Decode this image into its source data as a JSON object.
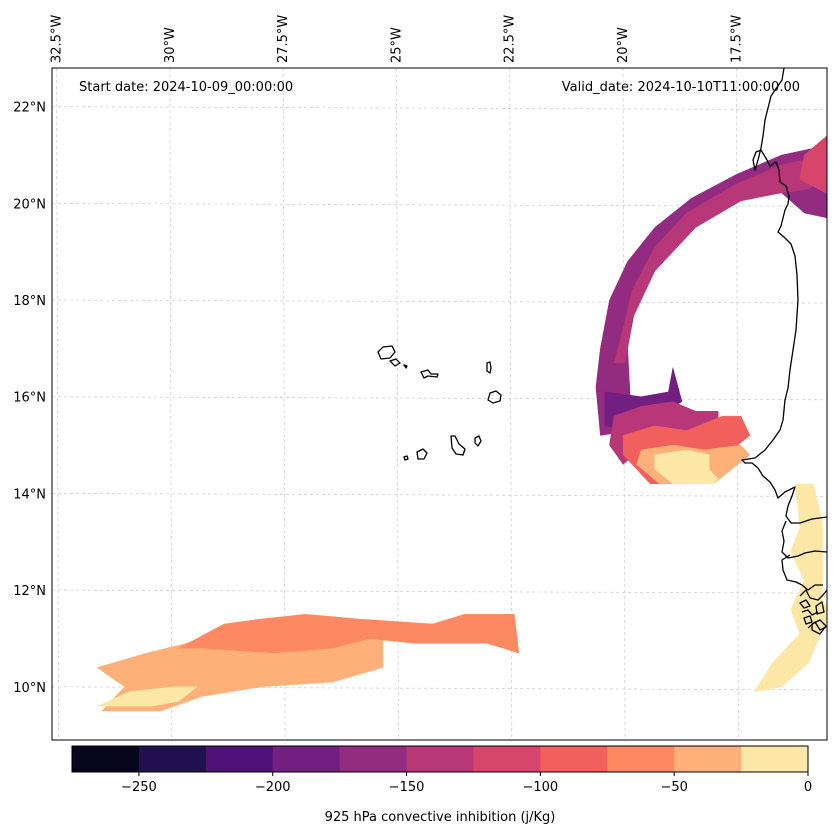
{
  "map": {
    "projection": "lat-lon",
    "extent": {
      "lon_min": -32.6,
      "lon_max": -15.5,
      "lat_min": 8.9,
      "lat_max": 22.8
    },
    "start_date_label": "Start date: 2024-10-09_00:00:00",
    "valid_date_label": "Valid_date: 2024-10-10T11:00:00.00",
    "lon_ticks": [
      {
        "value": -32.5,
        "label": "32.5°W"
      },
      {
        "value": -30,
        "label": "30°W"
      },
      {
        "value": -27.5,
        "label": "27.5°W"
      },
      {
        "value": -25,
        "label": "25°W"
      },
      {
        "value": -22.5,
        "label": "22.5°W"
      },
      {
        "value": -20,
        "label": "20°W"
      },
      {
        "value": -17.5,
        "label": "17.5°W"
      }
    ],
    "lat_ticks": [
      {
        "value": 22,
        "label": "22°N"
      },
      {
        "value": 20,
        "label": "20°N"
      },
      {
        "value": 18,
        "label": "18°N"
      },
      {
        "value": 16,
        "label": "16°N"
      },
      {
        "value": 14,
        "label": "14°N"
      },
      {
        "value": 12,
        "label": "12°N"
      },
      {
        "value": 10,
        "label": "10°N"
      }
    ],
    "field": "925 hPa convective inhibition",
    "regions": [
      {
        "name": "northern-arc-outer",
        "level": -175,
        "lonlat": [
          [
            -15.5,
            21.2
          ],
          [
            -16.5,
            21.0
          ],
          [
            -17.5,
            20.6
          ],
          [
            -18.5,
            20.1
          ],
          [
            -19.3,
            19.5
          ],
          [
            -19.9,
            18.8
          ],
          [
            -20.3,
            18.0
          ],
          [
            -20.5,
            17.0
          ],
          [
            -20.6,
            16.2
          ],
          [
            -20.5,
            15.2
          ],
          [
            -19.8,
            15.3
          ],
          [
            -19.9,
            17.0
          ],
          [
            -19.7,
            18.0
          ],
          [
            -19.1,
            19.0
          ],
          [
            -18.3,
            19.8
          ],
          [
            -17.3,
            20.2
          ],
          [
            -16.6,
            20.3
          ],
          [
            -16.0,
            19.8
          ],
          [
            -15.5,
            19.7
          ]
        ]
      },
      {
        "name": "northern-arc-inner",
        "level": -150,
        "lonlat": [
          [
            -15.5,
            21.0
          ],
          [
            -16.5,
            20.8
          ],
          [
            -17.5,
            20.4
          ],
          [
            -18.6,
            19.8
          ],
          [
            -19.3,
            19.1
          ],
          [
            -19.8,
            18.2
          ],
          [
            -20.0,
            17.4
          ],
          [
            -20.2,
            16.7
          ],
          [
            -19.95,
            16.7
          ],
          [
            -19.8,
            17.6
          ],
          [
            -19.3,
            18.6
          ],
          [
            -18.4,
            19.5
          ],
          [
            -17.4,
            20.05
          ],
          [
            -16.6,
            20.2
          ],
          [
            -15.9,
            20.3
          ],
          [
            -15.5,
            20.6
          ]
        ]
      },
      {
        "name": "northern-arc-east-core",
        "level": -125,
        "lonlat": [
          [
            -15.5,
            21.4
          ],
          [
            -16.0,
            21.0
          ],
          [
            -16.1,
            20.5
          ],
          [
            -15.5,
            20.2
          ]
        ]
      },
      {
        "name": "southwest-core",
        "level": -200,
        "lonlat": [
          [
            -20.4,
            16.1
          ],
          [
            -19.6,
            16.0
          ],
          [
            -19.0,
            16.1
          ],
          [
            -18.9,
            16.6
          ],
          [
            -18.7,
            15.9
          ],
          [
            -19.8,
            15.3
          ],
          [
            -20.4,
            15.4
          ]
        ]
      },
      {
        "name": "southwest-mid",
        "level": -150,
        "lonlat": [
          [
            -20.2,
            15.6
          ],
          [
            -19.6,
            15.8
          ],
          [
            -18.9,
            15.9
          ],
          [
            -18.4,
            15.7
          ],
          [
            -17.9,
            15.7
          ],
          [
            -17.9,
            15.3
          ],
          [
            -18.6,
            15.3
          ],
          [
            -19.5,
            15.0
          ],
          [
            -20.0,
            14.6
          ],
          [
            -20.3,
            15.0
          ]
        ]
      },
      {
        "name": "southwest-warm",
        "level": -100,
        "lonlat": [
          [
            -20.0,
            15.2
          ],
          [
            -19.3,
            15.4
          ],
          [
            -18.6,
            15.3
          ],
          [
            -17.8,
            15.6
          ],
          [
            -17.4,
            15.6
          ],
          [
            -17.2,
            15.2
          ],
          [
            -17.6,
            14.9
          ],
          [
            -18.2,
            14.8
          ],
          [
            -18.6,
            14.2
          ],
          [
            -19.4,
            14.2
          ],
          [
            -20.0,
            14.8
          ]
        ]
      },
      {
        "name": "southwest-light",
        "level": -50,
        "lonlat": [
          [
            -19.6,
            14.9
          ],
          [
            -18.9,
            15.0
          ],
          [
            -18.2,
            14.9
          ],
          [
            -17.4,
            15.0
          ],
          [
            -17.2,
            14.8
          ],
          [
            -17.6,
            14.5
          ],
          [
            -18.0,
            14.2
          ],
          [
            -19.2,
            14.2
          ],
          [
            -19.7,
            14.6
          ]
        ]
      },
      {
        "name": "southwest-near-zero",
        "level": -10,
        "lonlat": [
          [
            -19.3,
            14.8
          ],
          [
            -18.6,
            14.9
          ],
          [
            -18.1,
            14.8
          ],
          [
            -18.1,
            14.5
          ],
          [
            -17.9,
            14.3
          ],
          [
            -18.0,
            14.2
          ],
          [
            -18.9,
            14.2
          ],
          [
            -19.3,
            14.5
          ]
        ]
      },
      {
        "name": "coastal-senegal",
        "level": -10,
        "lonlat": [
          [
            -16.2,
            14.2
          ],
          [
            -15.8,
            14.2
          ],
          [
            -15.6,
            13.4
          ],
          [
            -15.6,
            12.8
          ],
          [
            -15.6,
            11.8
          ],
          [
            -15.4,
            11.5
          ],
          [
            -15.6,
            11.2
          ],
          [
            -15.9,
            10.5
          ],
          [
            -16.5,
            10.0
          ],
          [
            -17.1,
            9.9
          ],
          [
            -16.7,
            10.5
          ],
          [
            -16.1,
            11.1
          ],
          [
            -16.3,
            11.6
          ],
          [
            -16.0,
            12.2
          ],
          [
            -16.3,
            12.8
          ],
          [
            -16.1,
            13.3
          ]
        ]
      },
      {
        "name": "atlantic-band-light",
        "level": -30,
        "lonlat": [
          [
            -31.6,
            10.4
          ],
          [
            -30.5,
            10.7
          ],
          [
            -29.2,
            11.0
          ],
          [
            -27.8,
            11.0
          ],
          [
            -26.0,
            11.0
          ],
          [
            -25.3,
            11.1
          ],
          [
            -25.3,
            10.4
          ],
          [
            -26.4,
            10.1
          ],
          [
            -28.0,
            10.0
          ],
          [
            -29.3,
            9.8
          ],
          [
            -30.2,
            9.5
          ],
          [
            -31.5,
            9.5
          ],
          [
            -31.0,
            10.0
          ]
        ]
      },
      {
        "name": "atlantic-band-mid",
        "level": -60,
        "lonlat": [
          [
            -29.8,
            10.8
          ],
          [
            -28.8,
            11.3
          ],
          [
            -28.0,
            11.4
          ],
          [
            -27.0,
            11.5
          ],
          [
            -25.8,
            11.4
          ],
          [
            -24.2,
            11.3
          ],
          [
            -23.5,
            11.5
          ],
          [
            -22.4,
            11.5
          ],
          [
            -22.3,
            10.7
          ],
          [
            -23.0,
            10.9
          ],
          [
            -24.6,
            10.9
          ],
          [
            -25.6,
            11.0
          ],
          [
            -26.4,
            10.8
          ],
          [
            -27.7,
            10.7
          ],
          [
            -29.3,
            10.8
          ]
        ]
      },
      {
        "name": "atlantic-band-near-zero",
        "level": -10,
        "lonlat": [
          [
            -31.6,
            9.6
          ],
          [
            -30.9,
            9.9
          ],
          [
            -29.9,
            10.0
          ],
          [
            -29.4,
            10.0
          ],
          [
            -29.8,
            9.7
          ],
          [
            -30.4,
            9.6
          ]
        ]
      }
    ],
    "islands": "Cape Verde archipelago"
  },
  "colorbar": {
    "label": "925 hPa convective inhibition (j/Kg)",
    "min": -275,
    "max": 0,
    "levels": [
      -275,
      -250,
      -225,
      -200,
      -175,
      -150,
      -125,
      -100,
      -75,
      -50,
      -25,
      0
    ],
    "colors": [
      "#07061c",
      "#221150",
      "#4f127b",
      "#721f81",
      "#932b80",
      "#b73779",
      "#d8456c",
      "#f1605d",
      "#fc8961",
      "#feb078",
      "#fce7a6"
    ],
    "ticks": [
      {
        "value": -250,
        "label": "−250"
      },
      {
        "value": -200,
        "label": "−200"
      },
      {
        "value": -150,
        "label": "−150"
      },
      {
        "value": -100,
        "label": "−100"
      },
      {
        "value": -50,
        "label": "−50"
      },
      {
        "value": 0,
        "label": "0"
      }
    ]
  }
}
